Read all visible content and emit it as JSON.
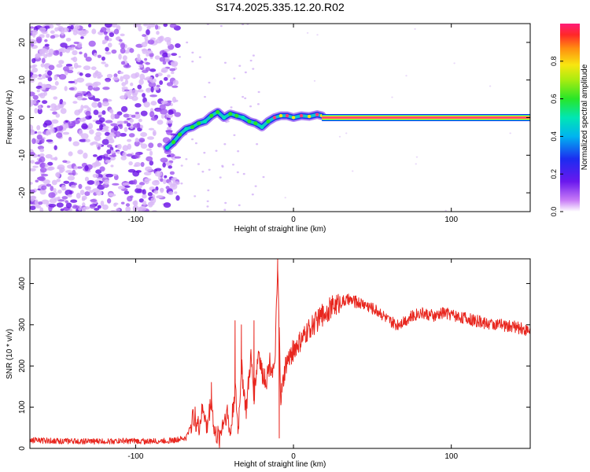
{
  "title": "S174.2025.335.12.20.R02",
  "colors": {
    "snr_line": "#e8261e",
    "axis": "#000000",
    "background": "#ffffff",
    "scatter": "#7a22e8",
    "ridge_hot": "#ff3c78"
  },
  "chart_data": [
    {
      "type": "heatmap",
      "name": "frequency-vs-height",
      "xlabel": "Height of straight line (km)",
      "ylabel": "Frequency (Hz)",
      "xlim": [
        -167,
        150
      ],
      "ylim": [
        -25,
        25
      ],
      "xticks": [
        -100,
        0,
        100
      ],
      "yticks": [
        -20,
        -10,
        0,
        10,
        20
      ],
      "colorbar": {
        "label": "Normalized spectral amplitude",
        "range": [
          0,
          1
        ],
        "ticks": [
          0.0,
          0.2,
          0.4,
          0.6,
          0.8
        ],
        "tick_labels": [
          "0.0",
          "0.2",
          "0.4",
          "0.6",
          "0.8"
        ]
      },
      "noise_region_x": [
        -167,
        -73
      ],
      "ridge_points": [
        {
          "x": -80,
          "f": -8.0
        },
        {
          "x": -76,
          "f": -6.5
        },
        {
          "x": -72,
          "f": -4.5
        },
        {
          "x": -68,
          "f": -3.0
        },
        {
          "x": -64,
          "f": -2.5
        },
        {
          "x": -60,
          "f": -1.5
        },
        {
          "x": -56,
          "f": -1.0
        },
        {
          "x": -52,
          "f": 0.5
        },
        {
          "x": -48,
          "f": 1.5
        },
        {
          "x": -44,
          "f": 0.0
        },
        {
          "x": -40,
          "f": 1.0
        },
        {
          "x": -36,
          "f": 0.5
        },
        {
          "x": -32,
          "f": 0.0
        },
        {
          "x": -28,
          "f": -1.0
        },
        {
          "x": -24,
          "f": -1.5
        },
        {
          "x": -20,
          "f": -2.5
        },
        {
          "x": -16,
          "f": -1.0
        },
        {
          "x": -12,
          "f": 0.0
        },
        {
          "x": -8,
          "f": 0.5
        },
        {
          "x": -4,
          "f": 0.5
        },
        {
          "x": 0,
          "f": 0.0
        },
        {
          "x": 5,
          "f": 0.5
        },
        {
          "x": 10,
          "f": 0.3
        },
        {
          "x": 15,
          "f": 0.8
        },
        {
          "x": 18,
          "f": 0.5
        }
      ],
      "steady_line": {
        "x_start": 18,
        "x_end": 150,
        "f": 0.0
      }
    },
    {
      "type": "line",
      "name": "snr-vs-height",
      "xlabel": "Height of straight line (km)",
      "ylabel": "SNR (10 * v/v)",
      "xlim": [
        -167,
        150
      ],
      "ylim": [
        0,
        460
      ],
      "xticks": [
        -100,
        0,
        100
      ],
      "yticks": [
        0,
        100,
        200,
        300,
        400
      ],
      "series": [
        {
          "name": "SNR",
          "x": [
            -167,
            -150,
            -130,
            -110,
            -90,
            -75,
            -68,
            -63,
            -60,
            -57,
            -55,
            -52,
            -50,
            -47,
            -45,
            -42,
            -40,
            -37,
            -35,
            -33,
            -30,
            -27,
            -25,
            -22,
            -20,
            -17,
            -15,
            -12,
            -10,
            -8,
            -5,
            0,
            5,
            10,
            15,
            20,
            25,
            30,
            35,
            40,
            45,
            50,
            55,
            60,
            65,
            70,
            75,
            80,
            85,
            90,
            95,
            100,
            110,
            120,
            130,
            140,
            150
          ],
          "values": [
            20,
            18,
            17,
            18,
            17,
            20,
            25,
            80,
            50,
            100,
            45,
            120,
            35,
            25,
            60,
            90,
            30,
            150,
            40,
            200,
            90,
            220,
            130,
            240,
            180,
            170,
            210,
            180,
            430,
            120,
            200,
            240,
            260,
            290,
            310,
            330,
            345,
            355,
            360,
            355,
            350,
            340,
            330,
            310,
            300,
            310,
            320,
            330,
            325,
            320,
            330,
            325,
            315,
            305,
            300,
            295,
            285
          ]
        }
      ],
      "spikes": [
        {
          "x": -52,
          "y": 160
        },
        {
          "x": -37,
          "y": 310
        },
        {
          "x": -33,
          "y": 300
        },
        {
          "x": -25,
          "y": 310
        },
        {
          "x": -10,
          "y": 460
        },
        {
          "x": -9,
          "y": 25
        }
      ]
    }
  ]
}
